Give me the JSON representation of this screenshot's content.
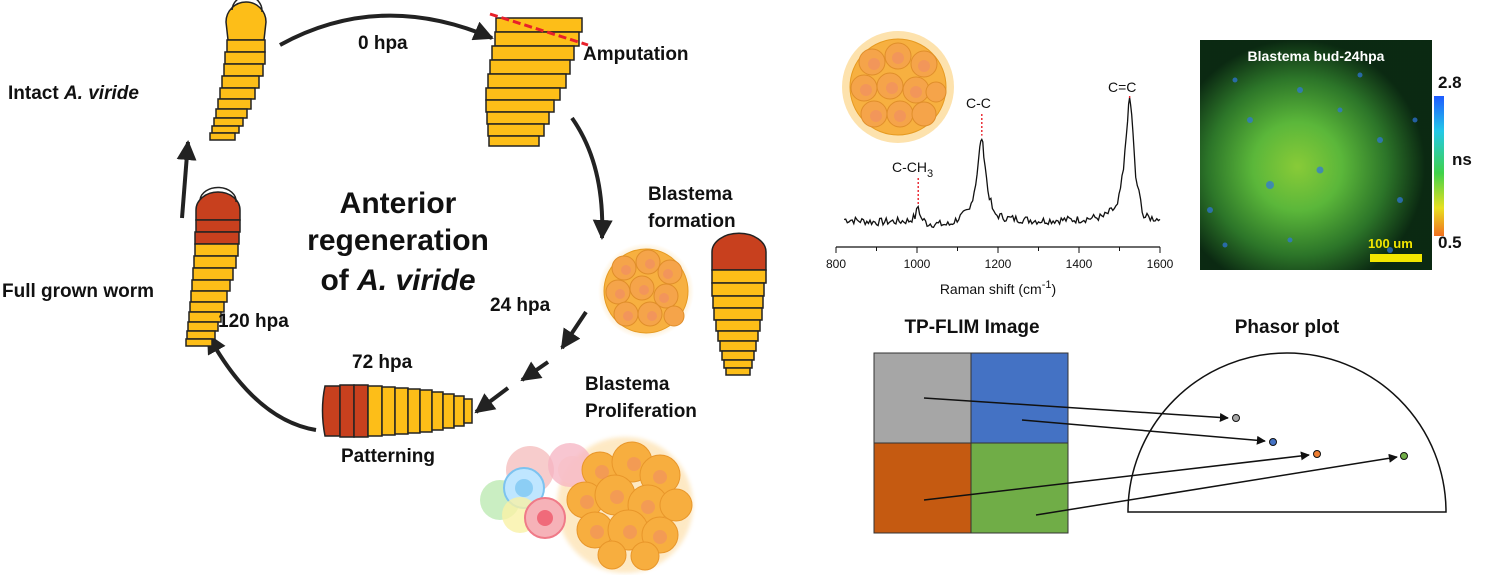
{
  "cycle": {
    "center_line1": "Anterior",
    "center_line2": "regeneration",
    "center_line3_prefix": "of ",
    "center_line3_species": "A. viride",
    "time_0": "0 hpa",
    "time_24": "24 hpa",
    "time_72": "72 hpa",
    "time_120": "120 hpa",
    "stage_intact_prefix": "Intact ",
    "stage_intact_species": "A. viride",
    "stage_amputation": "Amputation",
    "stage_blastema_formation_1": "Blastema",
    "stage_blastema_formation_2": "formation",
    "stage_blastema_proliferation_1": "Blastema",
    "stage_blastema_proliferation_2": "Proliferation",
    "stage_patterning": "Patterning",
    "stage_full_grown": "Full grown worm"
  },
  "colors": {
    "worm_yellow": "#FDBE18",
    "worm_red": "#C8401E",
    "amputation_line": "#E8202A",
    "cell": "#F7A93B",
    "cell_nucleus": "#F08A6A",
    "arrow": "#222222",
    "fl_gray": "#A6A6A6",
    "fl_blue": "#4472C4",
    "fl_orange": "#C55A11",
    "fl_green": "#70AD47"
  },
  "raman": {
    "xlabel_prefix": "Raman shift (cm",
    "xlabel_sup": "-1",
    "xlabel_suffix": ")",
    "ticks": [
      "800",
      "1000",
      "1200",
      "1400",
      "1600"
    ],
    "peak_ch3_main": "C-CH",
    "peak_ch3_sub": "3",
    "peak_cc": "C-C",
    "peak_c_eq_c": "C=C"
  },
  "chart_data": {
    "type": "line",
    "title": "",
    "xlabel": "Raman shift (cm-1)",
    "ylabel": "",
    "xlim": [
      800,
      1600
    ],
    "grid": false,
    "series": [
      {
        "x": [
          820,
          900,
          980,
          995,
          1003,
          1010,
          1025,
          1080,
          1130,
          1145,
          1155,
          1160,
          1165,
          1175,
          1190,
          1220,
          1300,
          1400,
          1460,
          1495,
          1510,
          1520,
          1525,
          1530,
          1540,
          1560,
          1600
        ],
        "y": [
          0.08,
          0.06,
          0.07,
          0.1,
          0.18,
          0.09,
          0.05,
          0.04,
          0.15,
          0.35,
          0.62,
          0.7,
          0.58,
          0.3,
          0.12,
          0.09,
          0.07,
          0.08,
          0.1,
          0.18,
          0.45,
          0.85,
          1.0,
          0.88,
          0.4,
          0.1,
          0.08
        ]
      }
    ],
    "annotations": [
      "C-CH3",
      "C-C",
      "C=C"
    ]
  },
  "flim_micro": {
    "title": "Blastema  bud-24hpa",
    "colorbar_max": "2.8",
    "colorbar_unit": "ns",
    "colorbar_min": "0.5",
    "scalebar": "100 um"
  },
  "tpflim": {
    "image_title": "TP-FLIM Image",
    "phasor_title": "Phasor plot"
  }
}
